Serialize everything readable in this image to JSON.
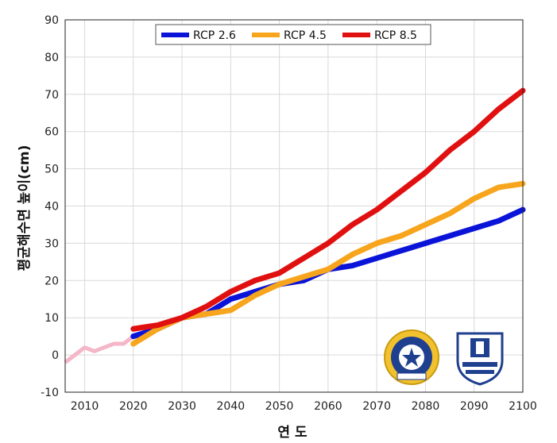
{
  "chart_data": {
    "type": "line",
    "title": "",
    "xlabel": "연 도",
    "ylabel": "평균해수면 높이(cm)",
    "xlim": [
      2006,
      2100
    ],
    "ylim": [
      -10,
      90
    ],
    "xticks": [
      2010,
      2020,
      2030,
      2040,
      2050,
      2060,
      2070,
      2080,
      2090,
      2100
    ],
    "yticks": [
      -10,
      0,
      10,
      20,
      30,
      40,
      50,
      60,
      70,
      80,
      90
    ],
    "grid": true,
    "legend_position": "top-center",
    "historical": {
      "color": "#f4b6c8",
      "x": [
        2006,
        2008,
        2010,
        2012,
        2014,
        2016,
        2018,
        2020
      ],
      "y": [
        -2,
        0,
        2,
        1,
        2,
        3,
        3,
        5
      ]
    },
    "series": [
      {
        "name": "RCP 2.6",
        "color": "#0a14d8",
        "x": [
          2020,
          2025,
          2030,
          2035,
          2040,
          2045,
          2050,
          2055,
          2060,
          2065,
          2070,
          2075,
          2080,
          2085,
          2090,
          2095,
          2100
        ],
        "y": [
          5,
          7,
          10,
          11,
          15,
          17,
          19,
          20,
          23,
          24,
          26,
          28,
          30,
          32,
          34,
          36,
          39
        ]
      },
      {
        "name": "RCP 4.5",
        "color": "#f7a51c",
        "x": [
          2020,
          2025,
          2030,
          2035,
          2040,
          2045,
          2050,
          2055,
          2060,
          2065,
          2070,
          2075,
          2080,
          2085,
          2090,
          2095,
          2100
        ],
        "y": [
          3,
          7,
          10,
          11,
          12,
          16,
          19,
          21,
          23,
          27,
          30,
          32,
          35,
          38,
          42,
          45,
          46
        ]
      },
      {
        "name": "RCP 8.5",
        "color": "#e01010",
        "x": [
          2020,
          2025,
          2030,
          2035,
          2040,
          2045,
          2050,
          2055,
          2060,
          2065,
          2070,
          2075,
          2080,
          2085,
          2090,
          2095,
          2100
        ],
        "y": [
          7,
          8,
          10,
          13,
          17,
          20,
          22,
          26,
          30,
          35,
          39,
          44,
          49,
          55,
          60,
          66,
          71
        ]
      }
    ]
  }
}
